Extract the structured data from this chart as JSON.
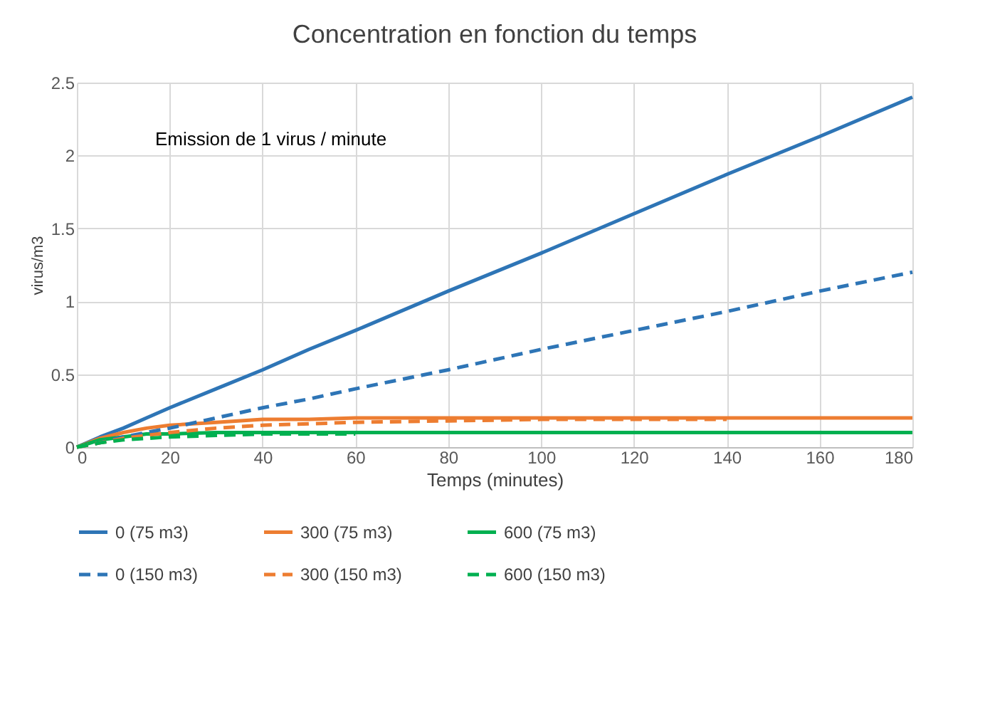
{
  "chart_data": {
    "type": "line",
    "title": "Concentration en fonction du temps",
    "xlabel": "Temps (minutes)",
    "ylabel": "virus/m3",
    "annotations": [
      "Emission de 1 virus / minute"
    ],
    "x": [
      0,
      5,
      10,
      15,
      20,
      30,
      40,
      50,
      60,
      80,
      100,
      120,
      140,
      160,
      180
    ],
    "series": [
      {
        "name": "0 (75 m3)",
        "color": "#2e75b6",
        "line_style": "solid",
        "values": [
          0,
          0.07,
          0.13,
          0.2,
          0.27,
          0.4,
          0.53,
          0.67,
          0.8,
          1.07,
          1.33,
          1.6,
          1.87,
          2.13,
          2.4
        ]
      },
      {
        "name": "300 (75 m3)",
        "color": "#ed7d31",
        "line_style": "solid",
        "values": [
          0,
          0.06,
          0.1,
          0.13,
          0.15,
          0.17,
          0.19,
          0.19,
          0.2,
          0.2,
          0.2,
          0.2,
          0.2,
          0.2,
          0.2
        ]
      },
      {
        "name": "600 (75 m3)",
        "color": "#00b050",
        "line_style": "solid",
        "values": [
          0,
          0.05,
          0.07,
          0.09,
          0.09,
          0.1,
          0.1,
          0.1,
          0.1,
          0.1,
          0.1,
          0.1,
          0.1,
          0.1,
          0.1
        ]
      },
      {
        "name": "0 (150 m3)",
        "color": "#2e75b6",
        "line_style": "dashed",
        "values": [
          0,
          0.03,
          0.07,
          0.1,
          0.13,
          0.2,
          0.27,
          0.33,
          0.4,
          0.53,
          0.67,
          0.8,
          0.93,
          1.07,
          1.2
        ]
      },
      {
        "name": "300 (150 m3)",
        "color": "#ed7d31",
        "line_style": "dashed",
        "values": [
          0,
          0.03,
          0.06,
          0.08,
          0.1,
          0.13,
          0.15,
          0.16,
          0.17,
          0.18,
          0.19,
          0.19,
          0.19,
          null,
          null
        ]
      },
      {
        "name": "600 (150 m3)",
        "color": "#00b050",
        "line_style": "dashed",
        "values": [
          0,
          0.03,
          0.05,
          0.06,
          0.07,
          0.08,
          0.09,
          0.09,
          0.09,
          null,
          null,
          null,
          null,
          null,
          null
        ]
      }
    ],
    "xlim": [
      0,
      180
    ],
    "xticks": [
      0,
      20,
      40,
      60,
      80,
      100,
      120,
      140,
      160,
      180
    ],
    "ylim": [
      0,
      2.5
    ],
    "yticks": [
      0,
      0.5,
      1,
      1.5,
      2,
      2.5
    ],
    "grid": true,
    "legend": "bottom",
    "marker": "none"
  }
}
